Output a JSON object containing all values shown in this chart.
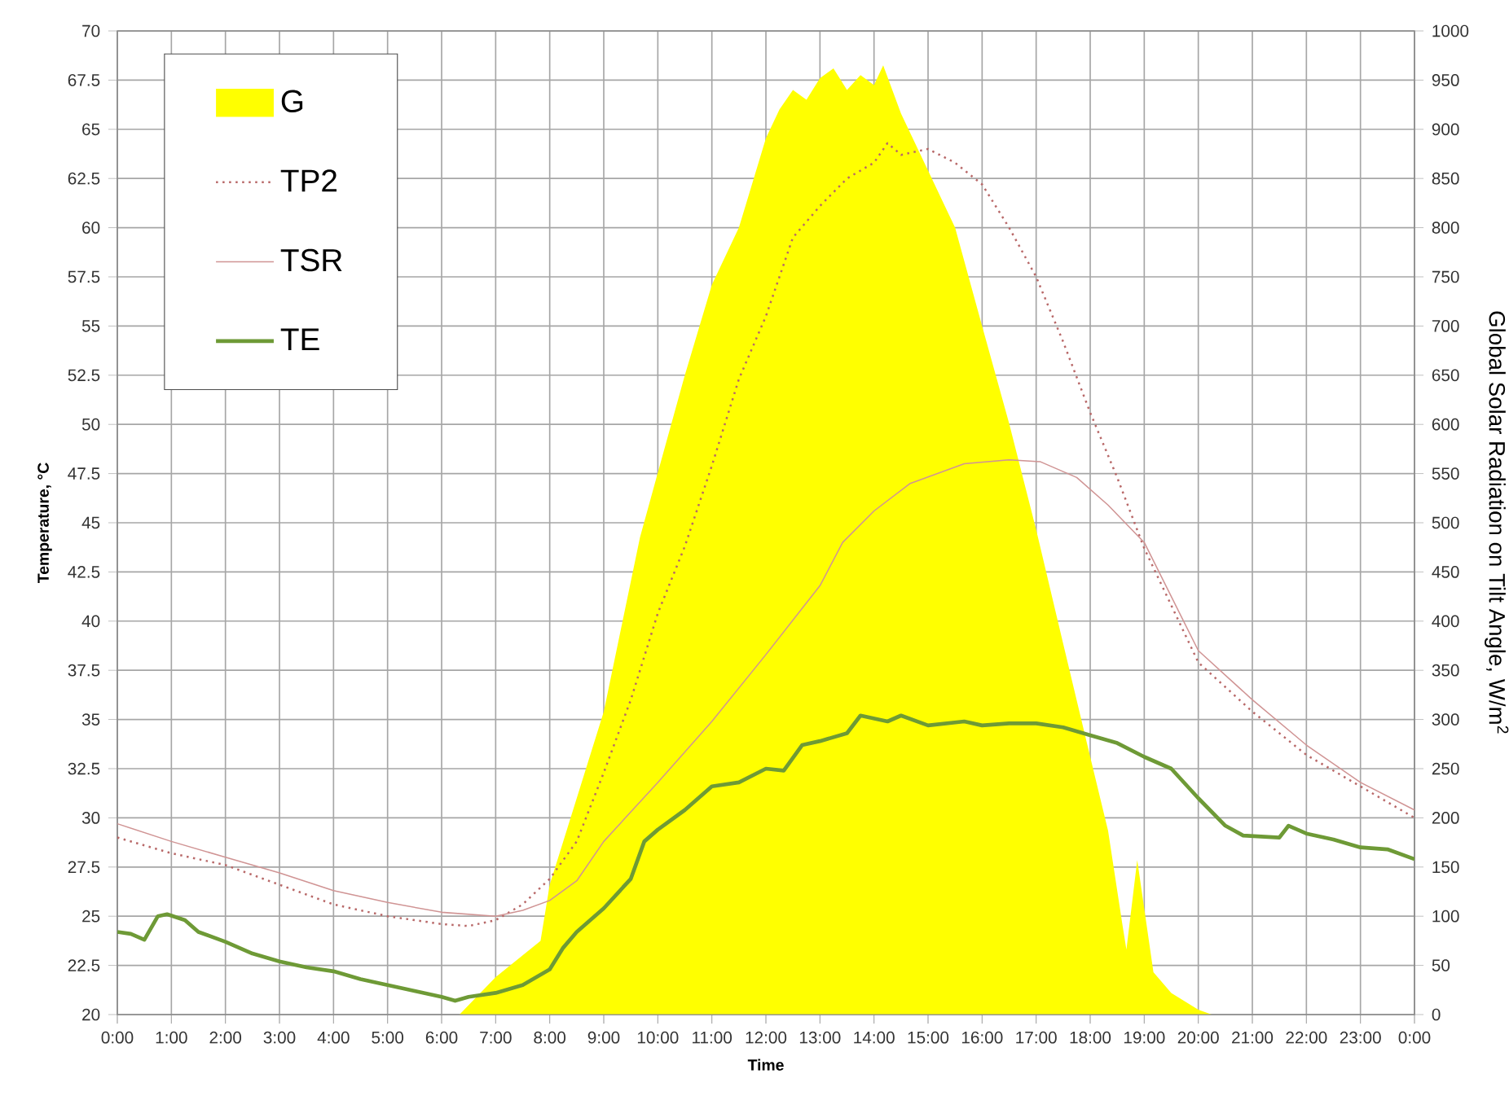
{
  "chart_data": {
    "type": "line",
    "xlabel": "Time",
    "ylabel": "Temperature, °C",
    "y2label": "Global Solar Radiation on Tilt Angle, W/m$^{2}$",
    "xlim": [
      0,
      24
    ],
    "xticks": [
      {
        "value": 0,
        "label": "0:00"
      },
      {
        "value": 1,
        "label": "1:00"
      },
      {
        "value": 2,
        "label": "2:00"
      },
      {
        "value": 3,
        "label": "3:00"
      },
      {
        "value": 4,
        "label": "4:00"
      },
      {
        "value": 5,
        "label": "5:00"
      },
      {
        "value": 6,
        "label": "6:00"
      },
      {
        "value": 7,
        "label": "7:00"
      },
      {
        "value": 8,
        "label": "8:00"
      },
      {
        "value": 9,
        "label": "9:00"
      },
      {
        "value": 10,
        "label": "10:00"
      },
      {
        "value": 11,
        "label": "11:00"
      },
      {
        "value": 12,
        "label": "12:00"
      },
      {
        "value": 13,
        "label": "13:00"
      },
      {
        "value": 14,
        "label": "14:00"
      },
      {
        "value": 15,
        "label": "15:00"
      },
      {
        "value": 16,
        "label": "16:00"
      },
      {
        "value": 17,
        "label": "17:00"
      },
      {
        "value": 18,
        "label": "18:00"
      },
      {
        "value": 19,
        "label": "19:00"
      },
      {
        "value": 20,
        "label": "20:00"
      },
      {
        "value": 21,
        "label": "21:00"
      },
      {
        "value": 22,
        "label": "22:00"
      },
      {
        "value": 23,
        "label": "23:00"
      },
      {
        "value": 24,
        "label": "0:00"
      }
    ],
    "ylim": [
      20,
      70
    ],
    "yticks": [
      20,
      22.5,
      25,
      27.5,
      30,
      32.5,
      35,
      37.5,
      40,
      42.5,
      45,
      47.5,
      50,
      52.5,
      55,
      57.5,
      60,
      62.5,
      65,
      67.5,
      70
    ],
    "y2lim": [
      0,
      1000
    ],
    "y2ticks": [
      0,
      50,
      100,
      150,
      200,
      250,
      300,
      350,
      400,
      450,
      500,
      550,
      600,
      650,
      700,
      750,
      800,
      850,
      900,
      950,
      1000
    ],
    "grid": true,
    "legend": "top left",
    "series": [
      {
        "name": "G",
        "type": "area",
        "axis": "y2",
        "color": "#ffff00",
        "x": [
          0,
          6.33,
          7,
          7.83,
          8,
          8.5,
          9,
          9.67,
          10,
          10.5,
          11,
          11.5,
          12,
          12.25,
          12.5,
          12.75,
          13,
          13.25,
          13.5,
          13.75,
          14,
          14.17,
          14.5,
          15,
          15.5,
          16,
          16.5,
          17,
          17.5,
          18,
          18.33,
          18.6,
          18.67,
          18.87,
          19.17,
          19.5,
          20,
          20.25,
          24
        ],
        "values": [
          0,
          0,
          38,
          75,
          132,
          220,
          308,
          485,
          551,
          650,
          742,
          800,
          891,
          920,
          940,
          930,
          952,
          962,
          940,
          955,
          945,
          965,
          916,
          858,
          800,
          700,
          601,
          493,
          377,
          262,
          187,
          90,
          66,
          157,
          43,
          22,
          5,
          0,
          0
        ]
      },
      {
        "name": "TP2",
        "line_style": "dotted",
        "color": "#b86868",
        "x": [
          0,
          1,
          2,
          3,
          4,
          5,
          6,
          6.5,
          7,
          7.5,
          8,
          8.5,
          9,
          9.5,
          10,
          10.5,
          11,
          11.5,
          12,
          12.5,
          13,
          13.5,
          14,
          14.25,
          14.5,
          15,
          15.5,
          16,
          16.5,
          17,
          17.5,
          18,
          18.5,
          19,
          20,
          21,
          22,
          23,
          24
        ],
        "values": [
          29.0,
          28.2,
          27.6,
          26.6,
          25.6,
          25.0,
          24.6,
          24.5,
          24.8,
          25.6,
          26.9,
          28.8,
          32.3,
          36.0,
          40.4,
          43.8,
          47.9,
          52.3,
          55.5,
          59.5,
          61.1,
          62.5,
          63.3,
          64.3,
          63.7,
          64.0,
          63.3,
          62.2,
          60.0,
          57.5,
          54.2,
          50.6,
          47.3,
          43.7,
          37.9,
          35.4,
          33.2,
          31.6,
          30.0
        ]
      },
      {
        "name": "TSR",
        "line_style": "solid",
        "color": "#d09494",
        "x": [
          0,
          1,
          2,
          3,
          4,
          5,
          6,
          7,
          7.5,
          8,
          8.5,
          9,
          10,
          11,
          12,
          13,
          13.42,
          14,
          14.67,
          15.67,
          16.5,
          17.08,
          17.75,
          18.33,
          19,
          20,
          21,
          22,
          23,
          24
        ],
        "values": [
          29.7,
          28.8,
          28.0,
          27.2,
          26.3,
          25.7,
          25.2,
          25.0,
          25.3,
          25.8,
          26.8,
          28.8,
          31.8,
          34.9,
          38.3,
          41.8,
          44.0,
          45.6,
          47.0,
          48.0,
          48.2,
          48.1,
          47.3,
          45.9,
          44.0,
          38.5,
          36.0,
          33.7,
          31.8,
          30.4
        ]
      },
      {
        "name": "TE",
        "line_style": "solid",
        "color": "#6e9a36",
        "x": [
          0,
          0.25,
          0.5,
          0.75,
          0.92,
          1.25,
          1.5,
          2,
          2.5,
          3,
          3.5,
          4,
          4.5,
          5,
          5.5,
          6,
          6.25,
          6.5,
          7,
          7.5,
          8,
          8.25,
          8.5,
          9,
          9.5,
          9.75,
          10,
          10.5,
          11,
          11.5,
          12,
          12.33,
          12.67,
          13,
          13.5,
          13.75,
          14.25,
          14.5,
          15,
          15.67,
          16,
          16.5,
          17,
          17.5,
          18,
          18.5,
          19,
          19.5,
          20,
          20.5,
          20.83,
          21.5,
          21.67,
          22,
          22.5,
          23,
          23.5,
          24
        ],
        "values": [
          24.2,
          24.1,
          23.8,
          25.0,
          25.1,
          24.8,
          24.2,
          23.7,
          23.1,
          22.7,
          22.4,
          22.2,
          21.8,
          21.5,
          21.2,
          20.9,
          20.7,
          20.9,
          21.1,
          21.5,
          22.3,
          23.4,
          24.2,
          25.4,
          26.9,
          28.8,
          29.4,
          30.4,
          31.6,
          31.8,
          32.5,
          32.4,
          33.7,
          33.9,
          34.3,
          35.2,
          34.9,
          35.2,
          34.7,
          34.9,
          34.7,
          34.8,
          34.8,
          34.6,
          34.2,
          33.8,
          33.1,
          32.5,
          31.0,
          29.6,
          29.1,
          29.0,
          29.6,
          29.2,
          28.9,
          28.5,
          28.4,
          27.9
        ]
      }
    ]
  }
}
